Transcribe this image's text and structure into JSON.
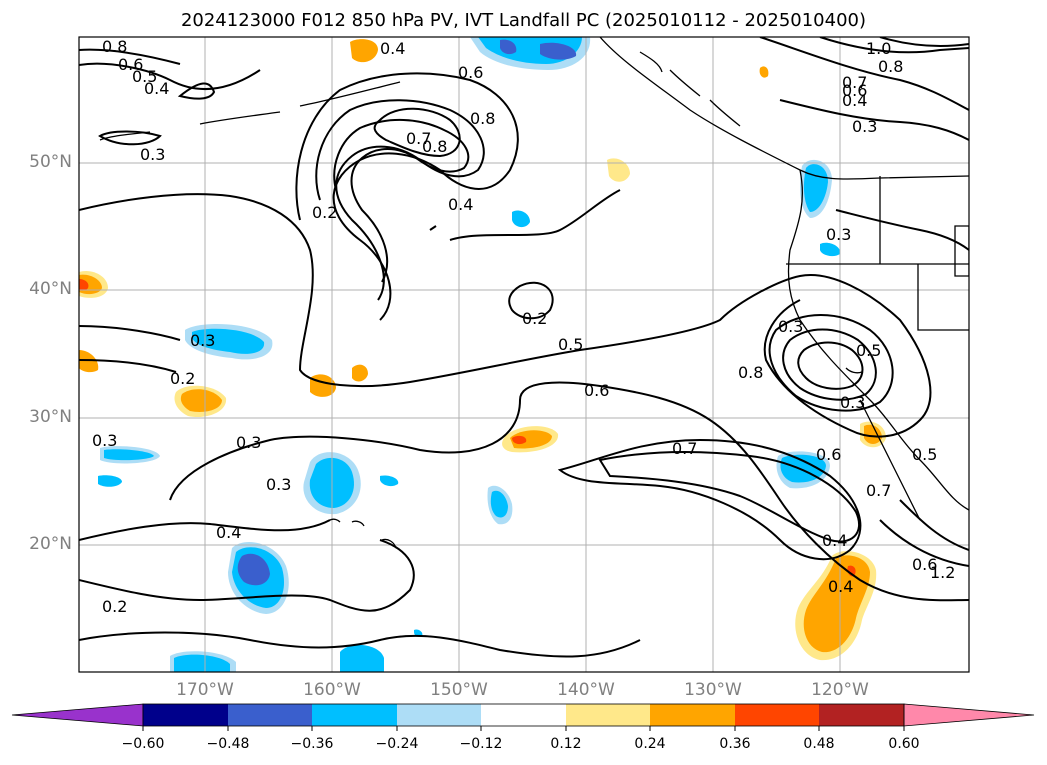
{
  "title": "2024123000 F012 850 hPa PV, IVT Landfall PC (2025010112 - 2025010400)",
  "map": {
    "region": "North-east Pacific",
    "lat_labels": [
      "50°N",
      "40°N",
      "30°N",
      "20°N"
    ],
    "lon_labels": [
      "170°W",
      "160°W",
      "150°W",
      "140°W",
      "130°W",
      "120°W"
    ],
    "pv_contour_labels": [
      "0.8",
      "0.6",
      "0.5",
      "0.4",
      "0.3",
      "0.4",
      "0.6",
      "0.8",
      "0.7",
      "0.8",
      "0.4",
      "0.2",
      "0.3",
      "0.2",
      "0.3",
      "0.3",
      "0.3",
      "0.4",
      "0.2",
      "0.2",
      "0.5",
      "0.6",
      "0.7",
      "0.8",
      "0.3",
      "0.5",
      "0.3",
      "0.6",
      "0.7",
      "0.4",
      "0.4",
      "0.5",
      "0.6",
      "1.2",
      "1.0",
      "0.8",
      "0.7",
      "0.6",
      "0.4",
      "0.3"
    ]
  },
  "colorbar": {
    "ticks": [
      "−0.60",
      "−0.48",
      "−0.36",
      "−0.24",
      "−0.12",
      "0.12",
      "0.24",
      "0.36",
      "0.48",
      "0.60"
    ],
    "colors": [
      "#9932CC",
      "#00008B",
      "#3A5FCD",
      "#00BFFF",
      "#ADDDF6",
      "#FFFFFF",
      "#FFE88A",
      "#FFA500",
      "#FF4500",
      "#B22222",
      "#FF88AA"
    ],
    "extend": "both"
  }
}
